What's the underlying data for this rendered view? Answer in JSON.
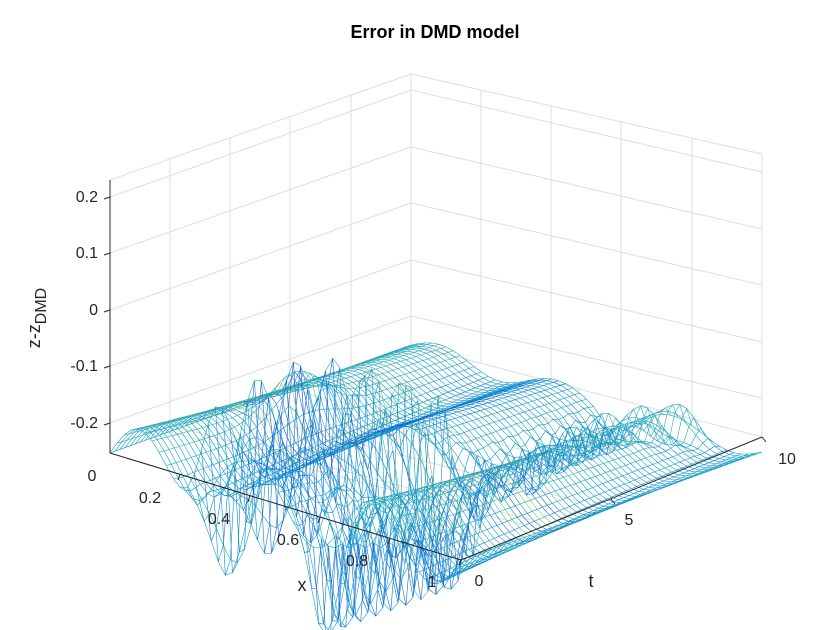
{
  "chart_data": {
    "type": "surface-mesh",
    "title": "Error in DMD model",
    "xlabel": "x",
    "ylabel": "t",
    "zlabel": "z-z",
    "zlabel_subscript": "DMD",
    "x_range": [
      0,
      1
    ],
    "t_range": [
      0,
      10
    ],
    "z_range": [
      -0.25,
      0.25
    ],
    "x_ticks": [
      "0.2",
      "0.4",
      "0.6",
      "0.8",
      "1"
    ],
    "t_ticks": [
      "0",
      "5",
      "10"
    ],
    "z_ticks": [
      "0.2",
      "0.1",
      "0",
      "-0.1",
      "-0.2"
    ],
    "extra_tick_zero": "0",
    "grid": true,
    "colormap": "parula",
    "z_extremes": {
      "min": -0.21,
      "max": 0.21
    }
  }
}
